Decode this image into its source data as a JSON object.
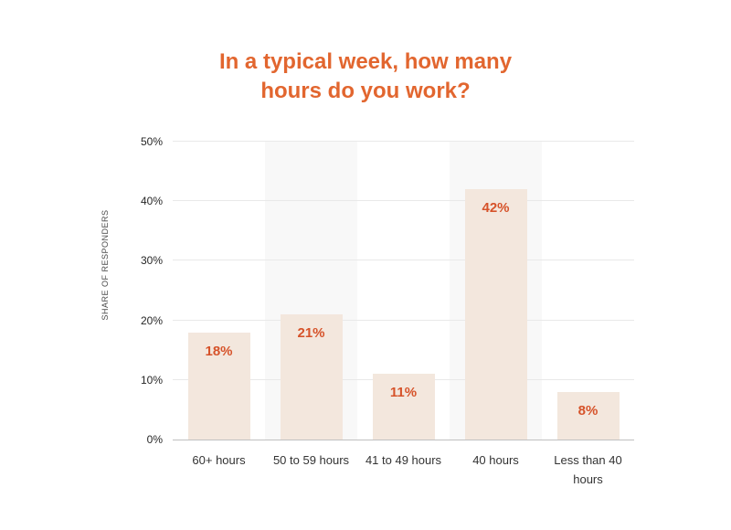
{
  "title_lines": [
    "In a typical week, how many",
    "hours do you work?"
  ],
  "chart_data": {
    "type": "bar",
    "title": "In a typical week, how many hours do you work?",
    "categories": [
      "60+ hours",
      "50 to 59 hours",
      "41 to 49 hours",
      "40 hours",
      "Less than 40 hours"
    ],
    "values": [
      18,
      21,
      11,
      42,
      8
    ],
    "value_labels": [
      "18%",
      "21%",
      "11%",
      "42%",
      "8%"
    ],
    "xlabel": "",
    "ylabel": "SHARE OF RESPONDERS",
    "ylim": [
      0,
      50
    ],
    "yticks": [
      {
        "value": 0,
        "label": "0%"
      },
      {
        "value": 10,
        "label": "10%"
      },
      {
        "value": 20,
        "label": "20%"
      },
      {
        "value": 30,
        "label": "30%"
      },
      {
        "value": 40,
        "label": "40%"
      },
      {
        "value": 50,
        "label": "50%"
      }
    ],
    "grid": "horizontal",
    "legend": "none",
    "shaded_column_indices": [
      1,
      3
    ]
  },
  "colors": {
    "background": "#ffffff",
    "title": "#e2662f",
    "value_label": "#d6532a",
    "bar_fill": "#f3e7dd",
    "column_band": "#f8f8f8",
    "gridline": "#e9e9e9",
    "axis_line": "#c0c0c0",
    "tick_label": "#262626",
    "category_label": "#333333",
    "y_axis_title": "#4d4d4d"
  }
}
